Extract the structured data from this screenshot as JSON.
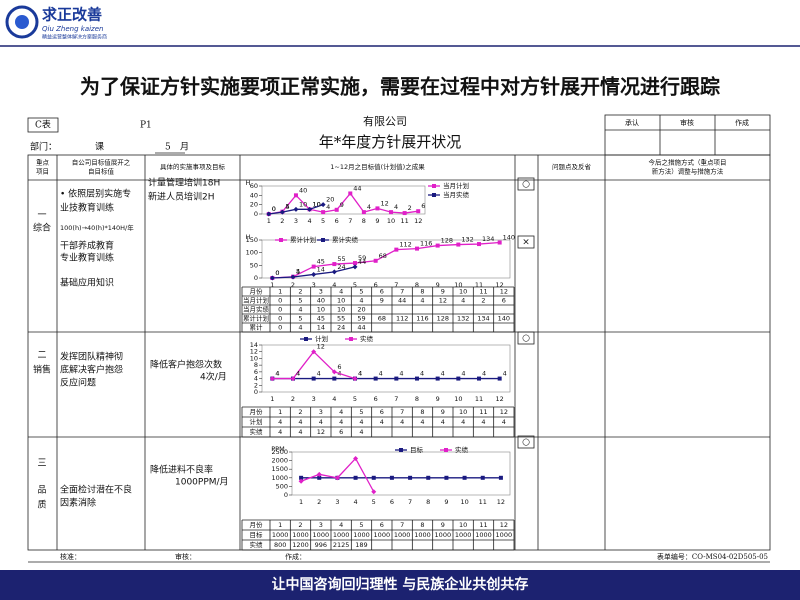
{
  "header": {
    "logo": "求正改善",
    "logo_en": "Qiu Zheng kaizen",
    "tagline": "精益运营整体解决方案服务商"
  },
  "title": "为了保证方针实施要项正常实施，需要在过程中对方针展开情况进行跟踪",
  "form": {
    "code": "C表",
    "page": "P1",
    "company": "有限公司",
    "name": "年*年度方针展开状况",
    "dept_label": "部门：",
    "section": "课",
    "month_no": "5",
    "month_unit": "月",
    "approvals": [
      "承认",
      "审核",
      "作成"
    ],
    "columns": [
      [
        "重点",
        "项目"
      ],
      [
        "自公司目标值展开之",
        "自目标值"
      ],
      [
        "具体的实施事项及目标"
      ],
      [
        "1~12月之目标值(计划值)之成果"
      ],
      [
        "问题点及反省"
      ],
      [
        "今后之措施方式（重点项目",
        "新方法）调整与措施方法"
      ]
    ],
    "rows": [
      {
        "number": "一",
        "name": [
          "综合"
        ],
        "goals": [
          "• 依照层别实施专",
          "业技教育训练",
          "100(h)→40(h)*140H/年",
          "干部养成教育",
          "专业教育训练",
          "基础应用知识"
        ],
        "actions": [
          "计量管理培训18H",
          "新进人员培训2H"
        ],
        "marks": [
          "○",
          "×"
        ],
        "table_labels": [
          "月份",
          "当月计划",
          "当月实绩",
          "累计计划",
          "累计"
        ]
      },
      {
        "number": "二",
        "name": [
          "销售"
        ],
        "goals": [
          "发挥团队精神彻",
          "底解决客户抱怨",
          "反应问题"
        ],
        "actions": [
          "降低客户抱怨次数",
          "4次/月"
        ],
        "marks": [
          "○"
        ],
        "table_labels": [
          "月份",
          "计划",
          "实绩"
        ]
      },
      {
        "number": "三",
        "name": [
          "品",
          "质"
        ],
        "goals": [
          "全面检讨潜在不良",
          "因素消除"
        ],
        "actions": [
          "降低进料不良率",
          "1000PPM/月"
        ],
        "marks": [
          "○"
        ],
        "table_labels": [
          "月份",
          "目标",
          "实绩"
        ]
      }
    ],
    "signoff": [
      "核准：",
      "审核：",
      "作成："
    ],
    "form_no": "表单编号：CO-MS04-02D505-05"
  },
  "chart_data": [
    {
      "type": "line",
      "ylabel": "H",
      "categories": [
        "1",
        "2",
        "3",
        "4",
        "5",
        "6",
        "7",
        "8",
        "9",
        "10",
        "11",
        "12"
      ],
      "ylim": [
        0,
        60
      ],
      "yticks": [
        0,
        20,
        40,
        60
      ],
      "data_labels": true,
      "series": [
        {
          "name": "当月计划",
          "color": "#e020c8",
          "values": [
            0,
            5,
            40,
            10,
            4,
            9,
            44,
            4,
            12,
            4,
            2,
            6
          ]
        },
        {
          "name": "当月实绩",
          "color": "#1a1a80",
          "values": [
            0,
            4,
            10,
            10,
            20,
            null,
            null,
            null,
            null,
            null,
            null,
            null
          ]
        }
      ]
    },
    {
      "type": "line",
      "ylabel": "H",
      "categories": [
        "1",
        "2",
        "3",
        "4",
        "5",
        "6",
        "7",
        "8",
        "9",
        "10",
        "11",
        "12"
      ],
      "ylim": [
        0,
        150
      ],
      "yticks": [
        0,
        50,
        100,
        150
      ],
      "data_labels": true,
      "series": [
        {
          "name": "累计计划",
          "color": "#e020c8",
          "values": [
            0,
            5,
            45,
            55,
            59,
            68,
            112,
            116,
            128,
            132,
            134,
            140
          ]
        },
        {
          "name": "累计实绩",
          "color": "#1a1a80",
          "values": [
            0,
            4,
            14,
            24,
            44,
            null,
            null,
            null,
            null,
            null,
            null,
            null
          ]
        }
      ]
    },
    {
      "type": "line",
      "categories": [
        "1",
        "2",
        "3",
        "4",
        "5",
        "6",
        "7",
        "8",
        "9",
        "10",
        "11",
        "12"
      ],
      "ylim": [
        0,
        14
      ],
      "yticks": [
        0,
        2,
        4,
        6,
        8,
        10,
        12,
        14
      ],
      "data_labels": true,
      "series": [
        {
          "name": "计划",
          "color": "#1a1a80",
          "values": [
            4,
            4,
            4,
            4,
            4,
            4,
            4,
            4,
            4,
            4,
            4,
            4
          ]
        },
        {
          "name": "实绩",
          "color": "#e020c8",
          "values": [
            4,
            4,
            12,
            6,
            4,
            null,
            null,
            null,
            null,
            null,
            null,
            null
          ]
        }
      ]
    },
    {
      "type": "line",
      "ylabel": "PPM",
      "categories": [
        "1",
        "2",
        "3",
        "4",
        "5",
        "6",
        "7",
        "8",
        "9",
        "10",
        "11",
        "12"
      ],
      "ylim": [
        0,
        2500
      ],
      "yticks": [
        0,
        500,
        1000,
        1500,
        2000,
        2500
      ],
      "data_labels": false,
      "series": [
        {
          "name": "目标",
          "color": "#1a1a80",
          "values": [
            1000,
            1000,
            1000,
            1000,
            1000,
            1000,
            1000,
            1000,
            1000,
            1000,
            1000,
            1000
          ]
        },
        {
          "name": "实绩",
          "color": "#e020c8",
          "values": [
            800,
            1200,
            996,
            2125,
            189,
            null,
            null,
            null,
            null,
            null,
            null,
            null
          ]
        }
      ]
    }
  ],
  "footer": "让中国咨询回归理性 与民族企业共创共存"
}
